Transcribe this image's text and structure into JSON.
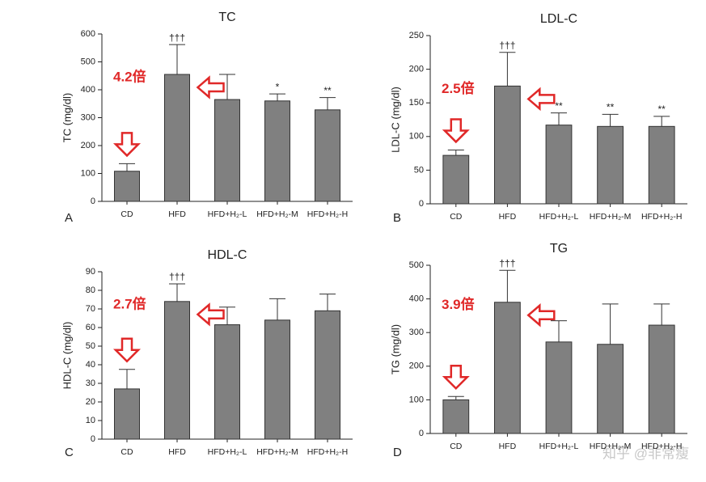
{
  "chart_data": [
    {
      "type": "bar",
      "panel": "A",
      "title": "TC",
      "y_label": "TC (mg/dl)",
      "fold_label": "4.2倍",
      "categories": [
        "CD",
        "HFD",
        "HFD+H₂-L",
        "HFD+H₂-M",
        "HFD+H₂-H"
      ],
      "values": [
        108,
        455,
        365,
        360,
        328
      ],
      "errors": [
        27,
        107,
        90,
        25,
        44
      ],
      "annotations": [
        null,
        "†††",
        null,
        "*",
        "**"
      ],
      "color": "#808080",
      "ylim": [
        0,
        600
      ],
      "yticks": [
        0,
        100,
        200,
        300,
        400,
        500,
        600
      ]
    },
    {
      "type": "bar",
      "panel": "B",
      "title": "LDL-C",
      "y_label": "LDL-C (mg/dl)",
      "fold_label": "2.5倍",
      "categories": [
        "CD",
        "HFD",
        "HFD+H₂-L",
        "HFD+H₂-M",
        "HFD+H₂-H"
      ],
      "values": [
        72,
        175,
        117,
        115,
        115
      ],
      "errors": [
        8,
        50,
        18,
        18,
        15
      ],
      "annotations": [
        null,
        "†††",
        "**",
        "**",
        "**"
      ],
      "color": "#808080",
      "ylim": [
        0,
        250
      ],
      "yticks": [
        0,
        50,
        100,
        150,
        200,
        250
      ]
    },
    {
      "type": "bar",
      "panel": "C",
      "title": "HDL-C",
      "y_label": "HDL-C (mg/dl)",
      "fold_label": "2.7倍",
      "categories": [
        "CD",
        "HFD",
        "HFD+H₂-L",
        "HFD+H₂-M",
        "HFD+H₂-H"
      ],
      "values": [
        27,
        74,
        61.5,
        64,
        69
      ],
      "errors": [
        10.5,
        9.5,
        9.5,
        11.5,
        9
      ],
      "annotations": [
        null,
        "†††",
        null,
        null,
        null
      ],
      "color": "#808080",
      "ylim": [
        0,
        90
      ],
      "yticks": [
        0,
        10,
        20,
        30,
        40,
        50,
        60,
        70,
        80,
        90
      ]
    },
    {
      "type": "bar",
      "panel": "D",
      "title": "TG",
      "y_label": "TG (mg/dl)",
      "fold_label": "3.9倍",
      "categories": [
        "CD",
        "HFD",
        "HFD+H₂-L",
        "HFD+H₂-M",
        "HFD+H₂-H"
      ],
      "values": [
        100,
        390,
        272,
        265,
        322
      ],
      "errors": [
        10,
        95,
        63,
        120,
        63
      ],
      "annotations": [
        null,
        "†††",
        null,
        null,
        null
      ],
      "color": "#808080",
      "ylim": [
        0,
        500
      ],
      "yticks": [
        0,
        100,
        200,
        300,
        400,
        500
      ]
    }
  ],
  "watermark": "知乎 @非常瘦"
}
